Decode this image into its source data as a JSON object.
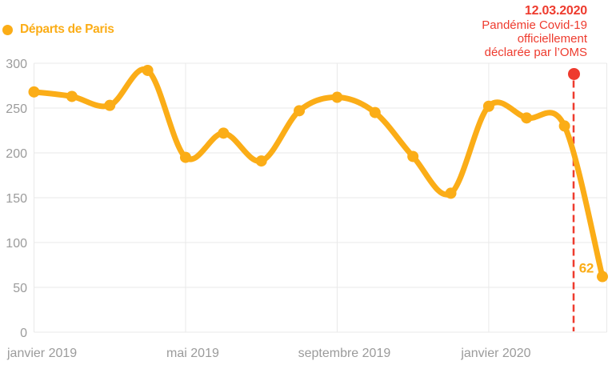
{
  "legend": {
    "label": "Départs de Paris"
  },
  "annotation": {
    "date": "12.03.2020",
    "lines": [
      "Pandémie Covid-19",
      "officiellement",
      "déclarée par l’OMS"
    ]
  },
  "chart_data": {
    "type": "line",
    "title": "",
    "series": [
      {
        "name": "Départs de Paris",
        "x": [
          "janvier 2019",
          "février 2019",
          "mars 2019",
          "avril 2019",
          "mai 2019",
          "juin 2019",
          "juillet 2019",
          "août 2019",
          "septembre 2019",
          "octobre 2019",
          "novembre 2019",
          "décembre 2019",
          "janvier 2020",
          "février 2020",
          "mars 2020",
          "avril 2020"
        ],
        "values": [
          268,
          263,
          253,
          292,
          195,
          222,
          191,
          247,
          262,
          245,
          196,
          155,
          252,
          239,
          230,
          62
        ]
      }
    ],
    "ylim": [
      0,
      300
    ],
    "y_ticks": [
      0,
      50,
      100,
      150,
      200,
      250,
      300
    ],
    "x_tick_labels": [
      {
        "index": 0,
        "label": "janvier 2019"
      },
      {
        "index": 4,
        "label": "mai 2019"
      },
      {
        "index": 8,
        "label": "septembre 2019"
      },
      {
        "index": 12,
        "label": "janvier 2020"
      }
    ],
    "grid": true,
    "legend_position": "top-left",
    "last_value_label": "62",
    "event_marker": {
      "date": "12.03.2020",
      "x_index": 14.24,
      "marker_value": 288
    },
    "colors": {
      "series": "#FBAD17",
      "event": "#EE3B2E",
      "grid": "#E9E9E9",
      "tick_text": "#9B9B9B",
      "background": "#FFFFFF"
    }
  }
}
